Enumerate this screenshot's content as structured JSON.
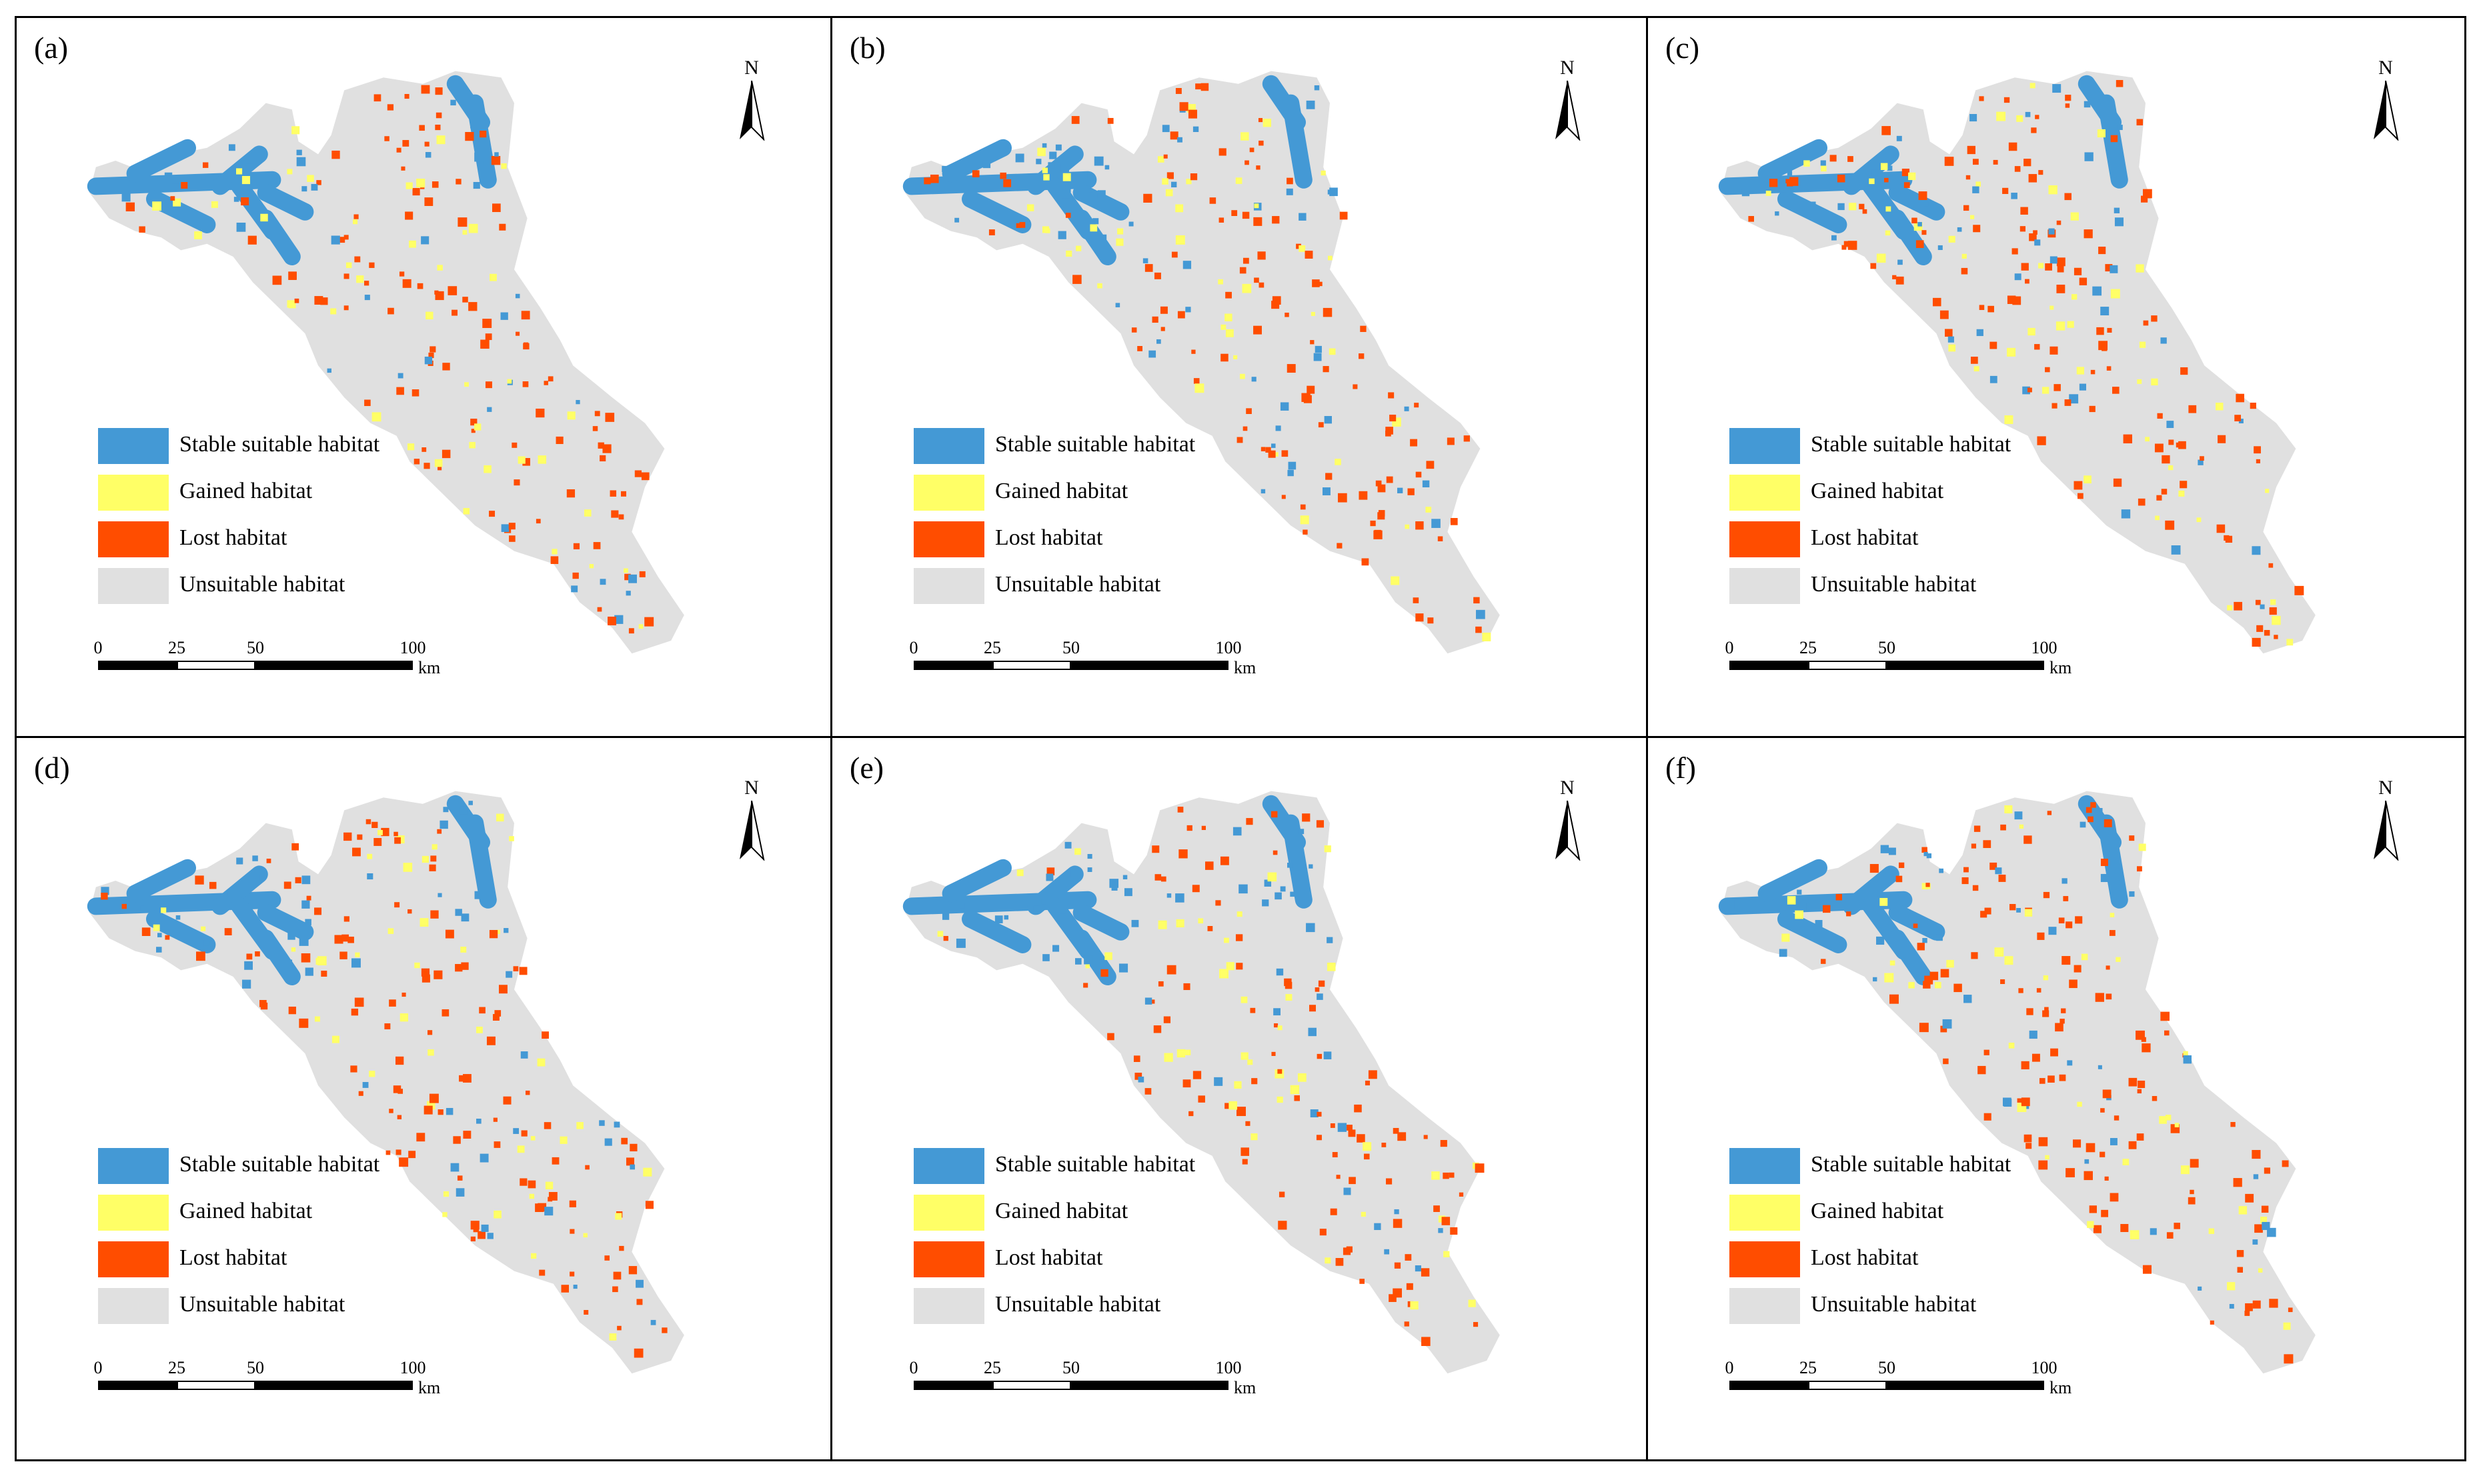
{
  "figure": {
    "panels": [
      {
        "letter": "(a)"
      },
      {
        "letter": "(b)"
      },
      {
        "letter": "(c)"
      },
      {
        "letter": "(d)"
      },
      {
        "letter": "(e)"
      },
      {
        "letter": "(f)"
      }
    ],
    "north_label": "N",
    "legend": [
      {
        "label": "Stable suitable habitat",
        "color": "#4499d5"
      },
      {
        "label": "Gained habitat",
        "color": "#ffff66"
      },
      {
        "label": "Lost habitat",
        "color": "#ff4d00"
      },
      {
        "label": "Unsuitable habitat",
        "color": "#e0e0e0"
      }
    ],
    "scalebar": {
      "ticks": [
        "0",
        "25",
        "50",
        "100"
      ],
      "unit": "km"
    },
    "colors": {
      "stable": "#4499d5",
      "gained": "#ffff66",
      "lost": "#ff4d00",
      "unsuitable": "#e0e0e0",
      "border": "#000000"
    }
  }
}
